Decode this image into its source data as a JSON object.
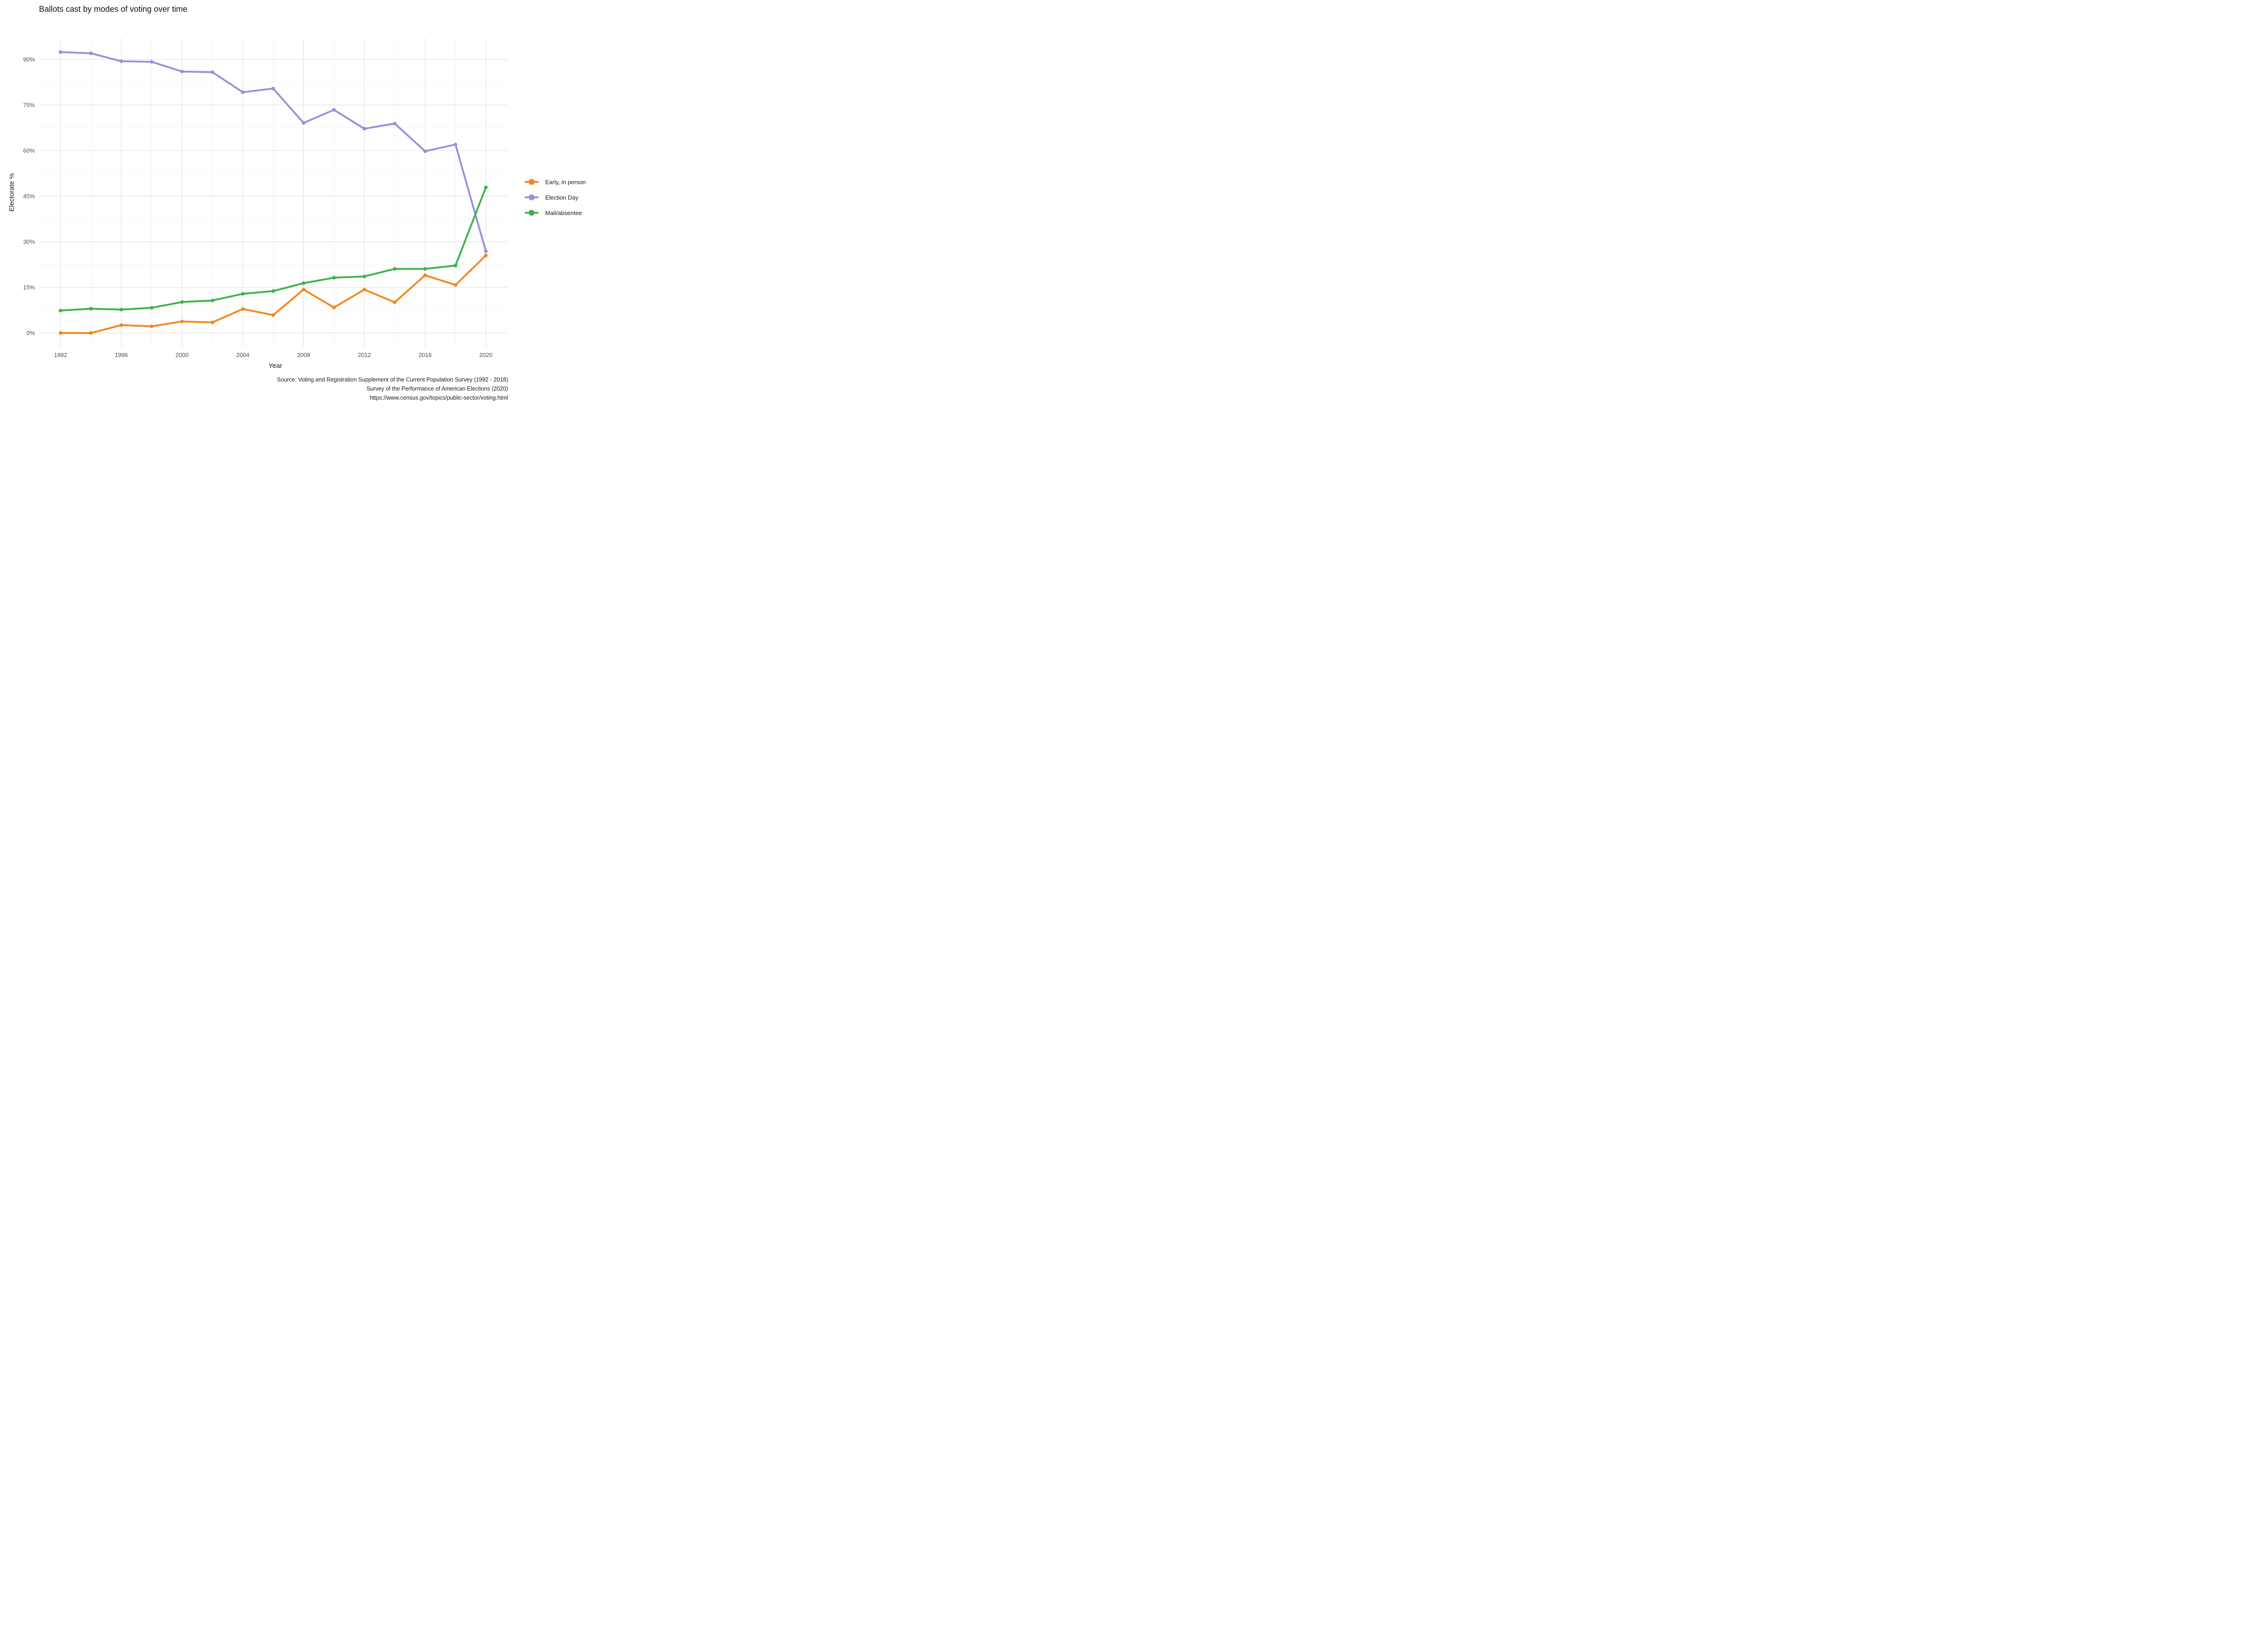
{
  "title": "Ballots cast by modes of voting over time",
  "axes": {
    "x_label": "Year",
    "y_label": "Electorate %"
  },
  "caption": {
    "line1": "Source: Voting and Registration Supplement of the Current Population Survey (1992 - 2018)",
    "line2": "Survey of the Performance of American Elections (2020)",
    "line3": "https://www.census.gov/topics/public-sector/voting.html"
  },
  "colors": {
    "background": "#ffffff",
    "grid_major": "#e7e7e7",
    "grid_minor": "#f1f1f1",
    "tick_label": "#4d4d4d"
  },
  "chart_data": {
    "type": "line",
    "title": "Ballots cast by modes of voting over time",
    "xlabel": "Year",
    "ylabel": "Electorate %",
    "x": [
      1992,
      1994,
      1996,
      1998,
      2000,
      2002,
      2004,
      2006,
      2008,
      2010,
      2012,
      2014,
      2016,
      2018,
      2020
    ],
    "x_tick_labels": [
      "1992",
      "1996",
      "2000",
      "2004",
      "2008",
      "2012",
      "2016",
      "2020"
    ],
    "y_ticks": [
      0,
      15,
      30,
      45,
      60,
      75,
      90
    ],
    "y_tick_suffix": "%",
    "xlim": [
      1990.6,
      2021.4
    ],
    "ylim": [
      -4.6,
      97.0
    ],
    "grid": "major and minor, no axis lines (theme_minimal)",
    "legend_position": "right",
    "series": [
      {
        "name": "Early, in person",
        "color": "#f5861f",
        "values": [
          0,
          0,
          2.6,
          2.2,
          3.8,
          3.5,
          7.9,
          5.9,
          14.3,
          8.4,
          14.3,
          10.1,
          19.0,
          15.8,
          25.5
        ]
      },
      {
        "name": "Election Day",
        "color": "#978fdb",
        "values": [
          92.4,
          92.0,
          89.4,
          89.2,
          86.0,
          85.8,
          79.2,
          80.4,
          69.1,
          73.4,
          67.2,
          68.9,
          59.8,
          62.0,
          26.9
        ]
      },
      {
        "name": "Mail/absentee",
        "color": "#3cb44b",
        "values": [
          7.4,
          8.0,
          7.7,
          8.3,
          10.2,
          10.7,
          12.9,
          13.8,
          16.4,
          18.2,
          18.6,
          21.1,
          21.1,
          22.2,
          47.9
        ]
      }
    ]
  }
}
